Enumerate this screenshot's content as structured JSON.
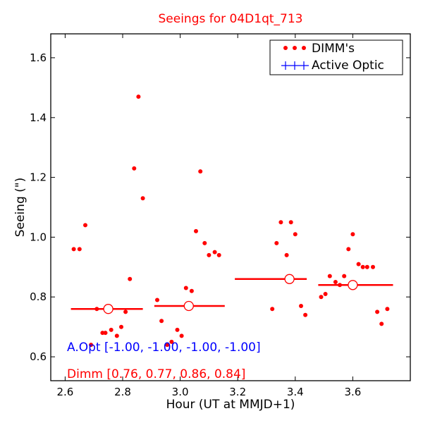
{
  "chart_data": {
    "type": "scatter",
    "title": "Seeings for 04D1qt_713",
    "xlabel": "Hour (UT at MMJD+1)",
    "ylabel": "Seeing (\")",
    "xlim": [
      2.55,
      3.8
    ],
    "ylim": [
      0.52,
      1.68
    ],
    "xticks": [
      2.6,
      2.8,
      3.0,
      3.2,
      3.4,
      3.6
    ],
    "yticks": [
      0.6,
      0.8,
      1.0,
      1.2,
      1.4,
      1.6
    ],
    "xtick_labels": [
      "2.6",
      "2.8",
      "3.0",
      "3.2",
      "3.4",
      "3.6"
    ],
    "ytick_labels": [
      "0.6",
      "0.8",
      "1.0",
      "1.2",
      "1.4",
      "1.6"
    ],
    "grid": false,
    "legend_position": "top-right",
    "legend": [
      {
        "label": "DIMM's",
        "marker": "dots",
        "color": "#ff0000"
      },
      {
        "label": "Active Optic",
        "marker": "plus",
        "color": "#0000ff"
      }
    ],
    "series": [
      {
        "name": "DIMM's",
        "color": "#ff0000",
        "points": [
          [
            2.63,
            0.96
          ],
          [
            2.65,
            0.96
          ],
          [
            2.67,
            1.04
          ],
          [
            2.69,
            0.64
          ],
          [
            2.71,
            0.76
          ],
          [
            2.73,
            0.68
          ],
          [
            2.74,
            0.68
          ],
          [
            2.76,
            0.69
          ],
          [
            2.78,
            0.67
          ],
          [
            2.795,
            0.7
          ],
          [
            2.81,
            0.75
          ],
          [
            2.825,
            0.86
          ],
          [
            2.84,
            1.23
          ],
          [
            2.855,
            1.47
          ],
          [
            2.87,
            1.13
          ],
          [
            2.92,
            0.79
          ],
          [
            2.935,
            0.72
          ],
          [
            2.955,
            0.64
          ],
          [
            2.97,
            0.65
          ],
          [
            2.99,
            0.69
          ],
          [
            3.005,
            0.67
          ],
          [
            3.02,
            0.83
          ],
          [
            3.04,
            0.82
          ],
          [
            3.055,
            1.02
          ],
          [
            3.07,
            1.22
          ],
          [
            3.085,
            0.98
          ],
          [
            3.1,
            0.94
          ],
          [
            3.12,
            0.95
          ],
          [
            3.135,
            0.94
          ],
          [
            3.32,
            0.76
          ],
          [
            3.335,
            0.98
          ],
          [
            3.35,
            1.05
          ],
          [
            3.37,
            0.94
          ],
          [
            3.385,
            1.05
          ],
          [
            3.4,
            1.01
          ],
          [
            3.42,
            0.77
          ],
          [
            3.435,
            0.74
          ],
          [
            3.49,
            0.8
          ],
          [
            3.505,
            0.81
          ],
          [
            3.52,
            0.87
          ],
          [
            3.54,
            0.85
          ],
          [
            3.555,
            0.84
          ],
          [
            3.57,
            0.87
          ],
          [
            3.585,
            0.96
          ],
          [
            3.6,
            1.01
          ],
          [
            3.62,
            0.91
          ],
          [
            3.635,
            0.9
          ],
          [
            3.65,
            0.9
          ],
          [
            3.67,
            0.9
          ],
          [
            3.685,
            0.75
          ],
          [
            3.7,
            0.71
          ],
          [
            3.72,
            0.76
          ]
        ]
      }
    ],
    "medians": [
      {
        "x": 2.75,
        "x_from": 2.62,
        "x_to": 2.87,
        "y": 0.76
      },
      {
        "x": 3.03,
        "x_from": 2.91,
        "x_to": 3.155,
        "y": 0.77
      },
      {
        "x": 3.38,
        "x_from": 3.19,
        "x_to": 3.44,
        "y": 0.86
      },
      {
        "x": 3.6,
        "x_from": 3.48,
        "x_to": 3.74,
        "y": 0.84
      }
    ],
    "annotations": [
      {
        "text": "A.Opt [-1.00, -1.00, -1.00, -1.00]",
        "color": "#0000ff"
      },
      {
        "text": "Dimm [0.76, 0.77, 0.86, 0.84]",
        "color": "#ff0000"
      }
    ]
  }
}
